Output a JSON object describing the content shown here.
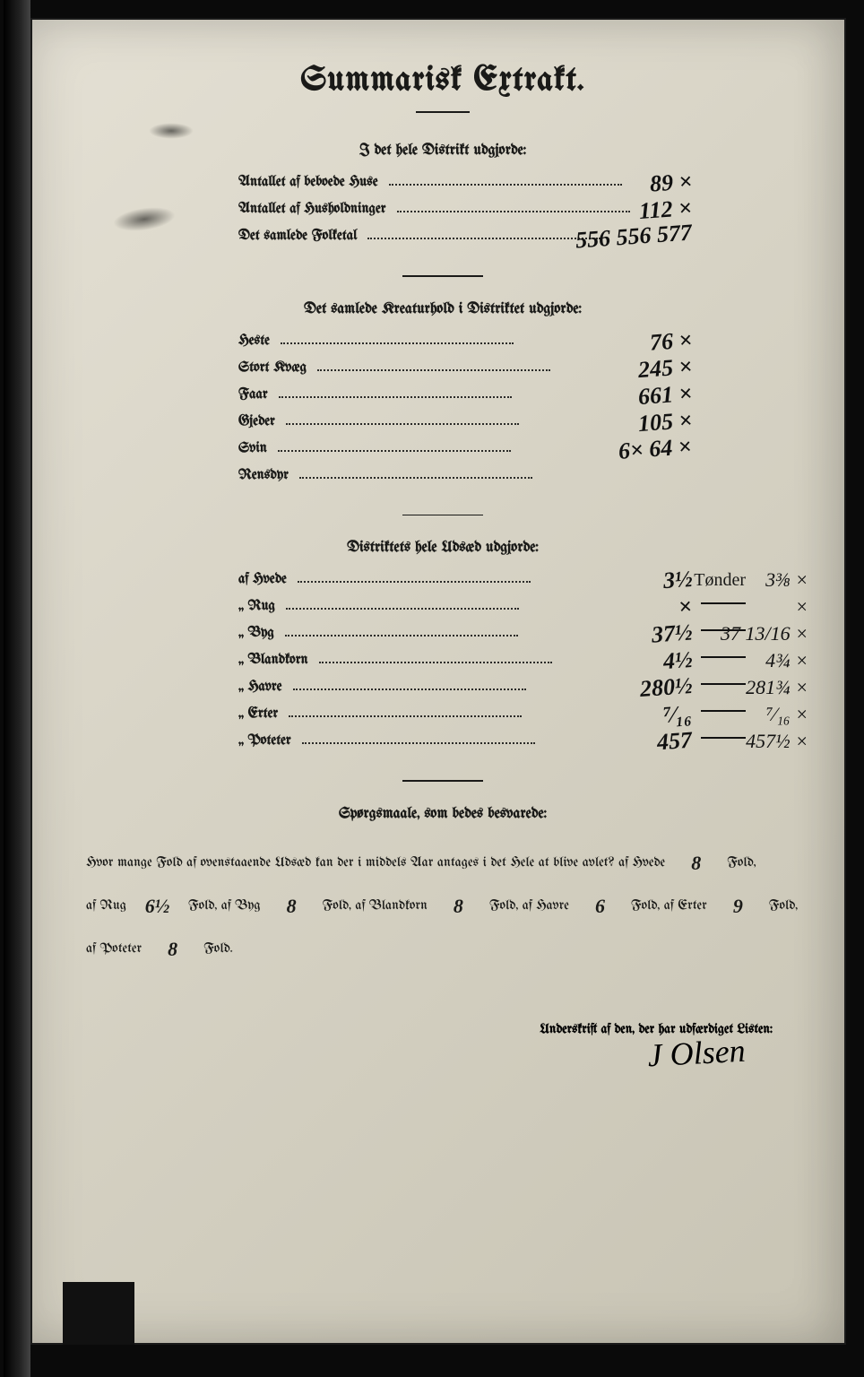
{
  "title": "Summarisk Extrakt.",
  "sections": {
    "s1": {
      "heading": "I det hele Distrikt udgjorde:",
      "rows": [
        {
          "label": "Antallet af beboede Huse",
          "hand": "89 ×",
          "hand2": ""
        },
        {
          "label": "Antallet af Husholdninger",
          "hand": "112 ×",
          "hand2": ""
        },
        {
          "label": "Det samlede Folketal",
          "hand": "556  556 577",
          "hand2": ""
        }
      ]
    },
    "s2": {
      "heading": "Det samlede Kreaturhold i Distriktet udgjorde:",
      "rows": [
        {
          "label": "Heste",
          "hand": "76 ×",
          "hand2": ""
        },
        {
          "label": "Stort Kvæg",
          "hand": "245 ×",
          "hand2": ""
        },
        {
          "label": "Faar",
          "hand": "661 ×",
          "hand2": ""
        },
        {
          "label": "Gjeder",
          "hand": "105 ×",
          "hand2": ""
        },
        {
          "label": "Svin",
          "hand": "6×  64 ×",
          "hand2": ""
        },
        {
          "label": "Rensdyr",
          "hand": "",
          "hand2": ""
        }
      ]
    },
    "s3": {
      "heading": "Distriktets hele Udsæd udgjorde:",
      "rows": [
        {
          "label": "af Hvede",
          "hand": "3½",
          "tonder": "Tønder",
          "hand2": "3⅜ ×"
        },
        {
          "label": "„ Rug",
          "hand": "×",
          "dash": true,
          "hand2": "×"
        },
        {
          "label": "„ Byg",
          "hand": "37½",
          "dash": true,
          "hand2": "37 13/16 ×"
        },
        {
          "label": "„ Blandkorn",
          "hand": "4½",
          "dash": true,
          "hand2": "4¾ ×"
        },
        {
          "label": "„ Havre",
          "hand": "280½",
          "dash": true,
          "hand2": "281¾ ×"
        },
        {
          "label": "„ Erter",
          "hand": "⁷⁄₁₆",
          "dash": true,
          "hand2": "⁷⁄₁₆ ×"
        },
        {
          "label": "„ Poteter",
          "hand": "457",
          "dash": true,
          "hand2": "457½ ×"
        }
      ]
    }
  },
  "questions": {
    "heading": "Spørgsmaale, som bedes besvarede:",
    "line1_a": "Hvor mange Fold af ovenstaaende Udsæd kan der i middels Aar antages i det Hele at blive avlet?  af Hvede",
    "hvede": "8",
    "line2_pre": "af Rug",
    "rug": "6½",
    "byg_lbl": "Fold, af Byg",
    "byg": "8",
    "bland_lbl": "Fold, af Blandkorn",
    "bland": "8",
    "havre_lbl": "Fold, af Havre",
    "havre": "6",
    "erter_lbl": "Fold, af Erter",
    "erter": "9",
    "line3_pre": "af Poteter",
    "poteter": "8",
    "fold_suffix": "Fold,",
    "fold_end": "Fold."
  },
  "signature_label": "Underskrift af den, der har udfærdiget Listen:",
  "signature": "J Olsen"
}
